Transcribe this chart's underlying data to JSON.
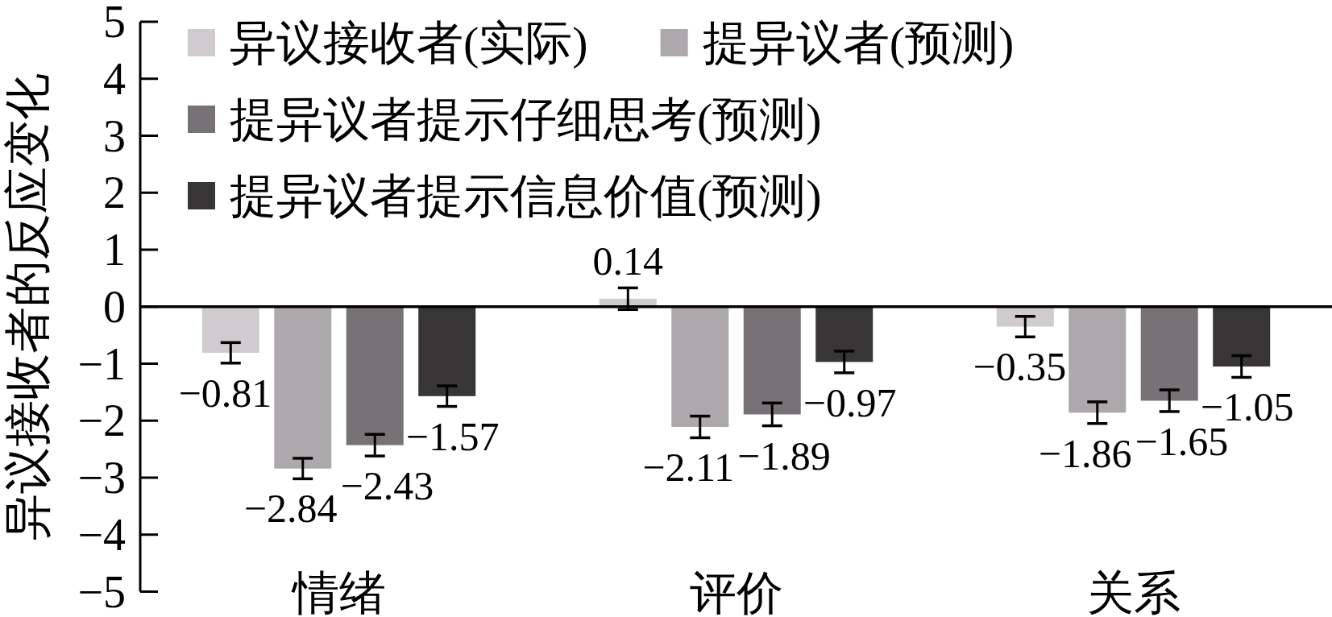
{
  "chart_data": {
    "type": "bar",
    "ylabel": "异议接收者的反应变化",
    "categories": [
      "情绪",
      "评价",
      "关系"
    ],
    "series": [
      {
        "name": "异议接收者(实际)",
        "color": "#cfcbcf",
        "values": [
          -0.81,
          0.14,
          -0.35
        ],
        "errors": [
          0.18,
          0.19,
          0.18
        ],
        "value_labels": [
          "−0.81",
          "0.14",
          "−0.35"
        ]
      },
      {
        "name": "提异议者(预测)",
        "color": "#aca8ab",
        "values": [
          -2.84,
          -2.11,
          -1.86
        ],
        "errors": [
          0.18,
          0.19,
          0.19
        ],
        "value_labels": [
          "−2.84",
          "−2.11",
          "−1.86"
        ]
      },
      {
        "name": "提异议者提示仔细思考(预测)",
        "color": "#777276",
        "values": [
          -2.43,
          -1.89,
          -1.65
        ],
        "errors": [
          0.19,
          0.2,
          0.19
        ],
        "value_labels": [
          "−2.43",
          "−1.89",
          "−1.65"
        ]
      },
      {
        "name": "提异议者提示信息价值(预测)",
        "color": "#383536",
        "values": [
          -1.57,
          -0.97,
          -1.05
        ],
        "errors": [
          0.18,
          0.19,
          0.19
        ],
        "value_labels": [
          "−1.57",
          "−0.97",
          "−1.05"
        ]
      }
    ],
    "ylim": [
      -5,
      5
    ],
    "yticks": [
      {
        "value": -5,
        "label": "−5"
      },
      {
        "value": -4,
        "label": "−4"
      },
      {
        "value": -3,
        "label": "−3"
      },
      {
        "value": -2,
        "label": "−2"
      },
      {
        "value": -1,
        "label": "−1"
      },
      0,
      1,
      2,
      3,
      4,
      5
    ],
    "legend": "top left"
  }
}
